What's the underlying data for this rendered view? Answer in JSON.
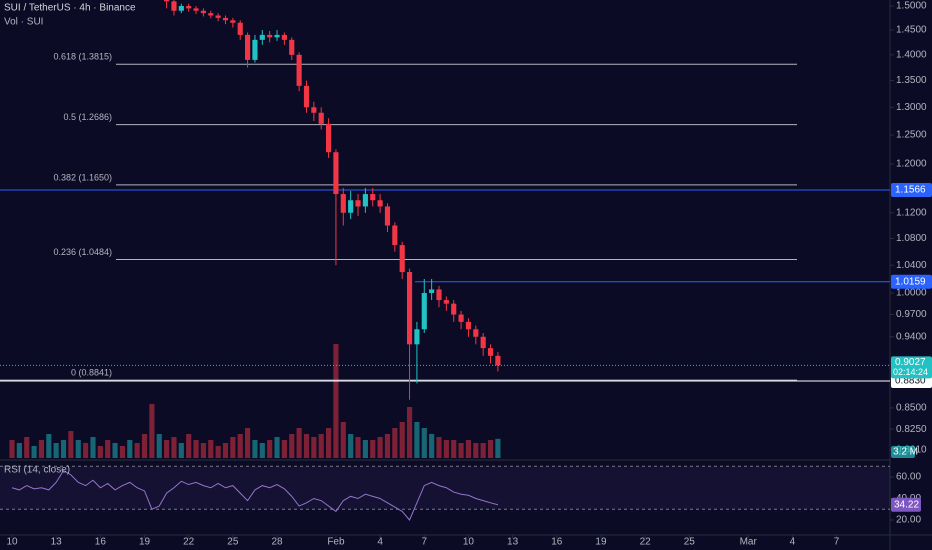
{
  "chart_data": {
    "type": "candlestick",
    "title": "SUI / TetherUS · 4h · Binance",
    "volume_title": "Vol · SUI",
    "log_scale": true,
    "xlim": [
      9.185,
      69.63
    ],
    "ylim": [
      0.792,
      1.5128
    ],
    "xticks": [
      10,
      13,
      16,
      19,
      22,
      25,
      28,
      {
        "value": 32,
        "label": "Feb"
      },
      {
        "value": 35,
        "label": "4"
      },
      {
        "value": 38,
        "label": "7"
      },
      {
        "value": 41,
        "label": "10"
      },
      {
        "value": 44,
        "label": "13"
      },
      {
        "value": 47,
        "label": "16"
      },
      {
        "value": 50,
        "label": "19"
      },
      {
        "value": 53,
        "label": "22"
      },
      {
        "value": 56,
        "label": "25"
      },
      {
        "value": 60,
        "label": "Mar"
      },
      {
        "value": 63,
        "label": "4"
      },
      {
        "value": 66,
        "label": "7"
      }
    ],
    "yticks": [
      {
        "value": 1.5,
        "label": "1.5000"
      },
      {
        "value": 1.45,
        "label": "1.4500"
      },
      {
        "value": 1.4,
        "label": "1.4000"
      },
      {
        "value": 1.35,
        "label": "1.3500"
      },
      {
        "value": 1.3,
        "label": "1.3000"
      },
      {
        "value": 1.25,
        "label": "1.2500"
      },
      {
        "value": 1.2,
        "label": "1.2000"
      },
      {
        "value": 1.12,
        "label": "1.1200"
      },
      {
        "value": 1.08,
        "label": "1.0800"
      },
      {
        "value": 1.04,
        "label": "1.0400"
      },
      {
        "value": 1.0,
        "label": "1.0000"
      },
      {
        "value": 0.97,
        "label": "0.9700"
      },
      {
        "value": 0.94,
        "label": "0.9400"
      },
      {
        "value": 0.85,
        "label": "0.8500"
      },
      {
        "value": 0.825,
        "label": "0.8250"
      },
      {
        "value": 0.801,
        "label": "0.8010"
      }
    ],
    "up_color": "#22c1c3",
    "down_color": "#f23645",
    "x": [
      20.5,
      21,
      21.5,
      22,
      22.5,
      23,
      23.5,
      24,
      24.5,
      25,
      25.5,
      26,
      26.5,
      27,
      27.5,
      28,
      28.5,
      29,
      29.5,
      30,
      30.5,
      31,
      31.5,
      32,
      32.5,
      33,
      33.5,
      34,
      34.5,
      35,
      35.5,
      36,
      36.5,
      37,
      37.5,
      38,
      38.5,
      39,
      39.5,
      40,
      40.5,
      41,
      41.5,
      42,
      42.5,
      43
    ],
    "open": [
      1.52,
      1.51,
      1.49,
      1.5,
      1.495,
      1.49,
      1.485,
      1.48,
      1.475,
      1.47,
      1.465,
      1.44,
      1.39,
      1.43,
      1.44,
      1.435,
      1.44,
      1.43,
      1.4,
      1.34,
      1.3,
      1.29,
      1.27,
      1.22,
      1.15,
      1.12,
      1.14,
      1.13,
      1.15,
      1.14,
      1.13,
      1.1,
      1.07,
      1.03,
      0.93,
      0.95,
      1.0,
      1.005,
      0.99,
      0.985,
      0.97,
      0.96,
      0.95,
      0.94,
      0.925,
      0.915
    ],
    "high": [
      1.53,
      1.515,
      1.505,
      1.505,
      1.5,
      1.495,
      1.49,
      1.485,
      1.48,
      1.475,
      1.47,
      1.445,
      1.44,
      1.45,
      1.448,
      1.45,
      1.445,
      1.435,
      1.405,
      1.35,
      1.31,
      1.3,
      1.28,
      1.225,
      1.16,
      1.155,
      1.15,
      1.16,
      1.16,
      1.15,
      1.135,
      1.105,
      1.075,
      1.035,
      0.96,
      1.02,
      1.02,
      1.01,
      0.995,
      0.99,
      0.975,
      0.965,
      0.955,
      0.945,
      0.93,
      0.92
    ],
    "low": [
      1.495,
      1.48,
      1.485,
      1.488,
      1.483,
      1.478,
      1.474,
      1.468,
      1.462,
      1.455,
      1.43,
      1.375,
      1.385,
      1.42,
      1.425,
      1.428,
      1.42,
      1.39,
      1.33,
      1.29,
      1.275,
      1.26,
      1.21,
      1.04,
      1.1,
      1.11,
      1.115,
      1.12,
      1.13,
      1.12,
      1.09,
      1.06,
      1.02,
      0.86,
      0.88,
      0.945,
      0.99,
      0.98,
      0.975,
      0.96,
      0.95,
      0.94,
      0.93,
      0.915,
      0.905,
      0.895
    ],
    "close": [
      1.51,
      1.49,
      1.5,
      1.495,
      1.49,
      1.485,
      1.48,
      1.475,
      1.47,
      1.465,
      1.44,
      1.39,
      1.43,
      1.44,
      1.435,
      1.44,
      1.43,
      1.4,
      1.34,
      1.3,
      1.29,
      1.27,
      1.22,
      1.15,
      1.12,
      1.14,
      1.13,
      1.15,
      1.14,
      1.13,
      1.1,
      1.07,
      1.03,
      0.93,
      0.95,
      1.0,
      1.005,
      0.99,
      0.985,
      0.97,
      0.96,
      0.95,
      0.94,
      0.925,
      0.915,
      0.9027
    ],
    "fib_levels": [
      {
        "value": 1.3815,
        "label": "0.618 (1.3815)"
      },
      {
        "value": 1.2686,
        "label": "0.5 (1.2686)"
      },
      {
        "value": 1.165,
        "label": "0.382 (1.1650)"
      },
      {
        "value": 1.0484,
        "label": "0.236 (1.0484)"
      },
      {
        "value": 0.8841,
        "label": "0 (0.8841)"
      }
    ],
    "fib_color": "#b2b5be",
    "price_lines": [
      {
        "value": 1.1566,
        "label": "1.1566",
        "color": "#2962ff"
      },
      {
        "value": 1.0159,
        "label": "1.0159",
        "color": "#2962ff"
      },
      {
        "value": 0.883,
        "label": "0.8830",
        "color": "#ffffff"
      }
    ],
    "last_price": {
      "value": 0.9027,
      "label": "0.9027",
      "countdown": "02:14:24",
      "color": "#22c1c3"
    },
    "volume": {
      "x": [
        10,
        10.5,
        11,
        11.5,
        12,
        12.5,
        13,
        13.5,
        14,
        14.5,
        15,
        15.5,
        16,
        16.5,
        17,
        17.5,
        18,
        18.5,
        19,
        19.5,
        20,
        20.5,
        21,
        21.5,
        22,
        22.5,
        23,
        23.5,
        24,
        24.5,
        25,
        25.5,
        26,
        26.5,
        27,
        27.5,
        28,
        28.5,
        29,
        29.5,
        30,
        30.5,
        31,
        31.5,
        32,
        32.5,
        33,
        33.5,
        34,
        34.5,
        35,
        35.5,
        36,
        36.5,
        37,
        37.5,
        38,
        38.5,
        39,
        39.5,
        40,
        40.5,
        41,
        41.5,
        42,
        42.5,
        43
      ],
      "values": [
        3,
        2.5,
        3.5,
        2,
        3,
        4,
        2.5,
        3,
        4.5,
        3,
        2.5,
        3.5,
        2,
        3,
        2.5,
        2,
        3,
        2.5,
        4,
        9,
        4,
        3,
        3.5,
        2.5,
        4,
        3,
        2.5,
        3,
        2,
        2.5,
        3.5,
        4,
        5,
        3,
        2.5,
        3,
        3.5,
        3,
        4,
        5,
        4,
        3.5,
        4,
        5,
        19,
        6,
        4,
        3.5,
        3,
        3,
        3.5,
        4,
        5,
        6,
        8.5,
        6,
        5,
        4,
        3.5,
        3,
        3,
        2.5,
        3,
        2.5,
        2.5,
        3,
        3.2
      ],
      "up": [
        false,
        true,
        false,
        true,
        false,
        true,
        true,
        true,
        false,
        true,
        false,
        true,
        false,
        false,
        true,
        false,
        true,
        false,
        false,
        false,
        true,
        false,
        false,
        true,
        false,
        false,
        false,
        false,
        false,
        false,
        false,
        false,
        false,
        true,
        true,
        false,
        true,
        false,
        false,
        false,
        false,
        false,
        false,
        false,
        false,
        false,
        true,
        false,
        true,
        false,
        false,
        false,
        false,
        false,
        false,
        true,
        true,
        true,
        false,
        false,
        false,
        false,
        false,
        false,
        false,
        false,
        true
      ],
      "ylim": [
        0,
        20
      ],
      "last_label": "3.2 M"
    },
    "rsi": {
      "title": "RSI (14, close)",
      "ylim": [
        6.05,
        73.95
      ],
      "yticks": [
        {
          "value": 60,
          "label": "60.00"
        },
        {
          "value": 40,
          "label": "40.00"
        },
        {
          "value": 20,
          "label": "20.00"
        }
      ],
      "bands": [
        30,
        70
      ],
      "color": "#9575cd",
      "x": [
        10,
        10.5,
        11,
        11.5,
        12,
        12.5,
        13,
        13.5,
        14,
        14.5,
        15,
        15.5,
        16,
        16.5,
        17,
        17.5,
        18,
        18.5,
        19,
        19.5,
        20,
        20.5,
        21,
        21.5,
        22,
        22.5,
        23,
        23.5,
        24,
        24.5,
        25,
        25.5,
        26,
        26.5,
        27,
        27.5,
        28,
        28.5,
        29,
        29.5,
        30,
        30.5,
        31,
        31.5,
        32,
        32.5,
        33,
        33.5,
        34,
        34.5,
        35,
        35.5,
        36,
        36.5,
        37,
        37.5,
        38,
        38.5,
        39,
        39.5,
        40,
        40.5,
        41,
        41.5,
        42,
        42.5,
        43
      ],
      "values": [
        50,
        48,
        52,
        49,
        50,
        48,
        55,
        66,
        62,
        55,
        52,
        57,
        50,
        54,
        48,
        52,
        55,
        50,
        47,
        30,
        33,
        45,
        50,
        56,
        53,
        55,
        52,
        50,
        54,
        50,
        52,
        45,
        38,
        48,
        52,
        50,
        53,
        49,
        42,
        33,
        36,
        40,
        38,
        33,
        28,
        38,
        42,
        40,
        44,
        42,
        40,
        36,
        32,
        28,
        20,
        36,
        52,
        55,
        52,
        50,
        46,
        44,
        43,
        40,
        38,
        36,
        34.22
      ],
      "last": {
        "value": 34.22,
        "label": "34.22"
      }
    }
  }
}
